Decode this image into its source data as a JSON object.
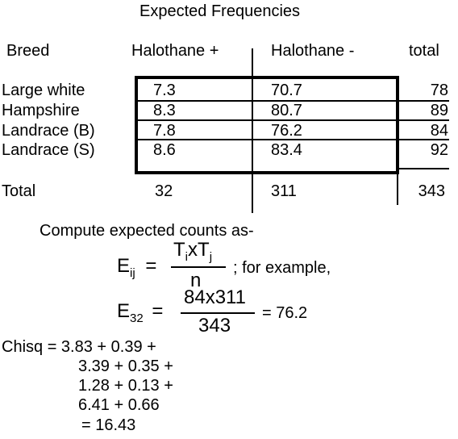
{
  "title": "Expected Frequencies",
  "headers": {
    "breed": "Breed",
    "hal_plus": "Halothane +",
    "hal_minus": "Halothane -",
    "total": "total"
  },
  "rows": [
    {
      "breed": "Large white",
      "plus": "7.3",
      "minus": "70.7",
      "total": "78"
    },
    {
      "breed": "Hampshire",
      "plus": "8.3",
      "minus": "80.7",
      "total": "89"
    },
    {
      "breed": "Landrace (B)",
      "plus": "7.8",
      "minus": "76.2",
      "total": "84"
    },
    {
      "breed": "Landrace (S)",
      "plus": "8.6",
      "minus": "83.4",
      "total": "92"
    }
  ],
  "totals": {
    "label": "Total",
    "plus": "32",
    "minus": "311",
    "grand": "343"
  },
  "compute_text": "Compute expected counts as-",
  "formula": {
    "lhs": "E",
    "lhs_sub": "ij",
    "num_t1": "T",
    "num_t1_sub": "i",
    "num_x": "x",
    "num_t2": "T",
    "num_t2_sub": "j",
    "den": "n",
    "tail": "; for example,"
  },
  "example": {
    "lhs": "E",
    "lhs_sub": "32",
    "num": "84x311",
    "den": "343",
    "result": "= 76.2"
  },
  "chisq": [
    "Chisq = 3.83 + 0.39 +",
    "3.39 + 0.35 +",
    "1.28 + 0.13 +",
    "6.41 + 0.66",
    "= 16.43"
  ]
}
